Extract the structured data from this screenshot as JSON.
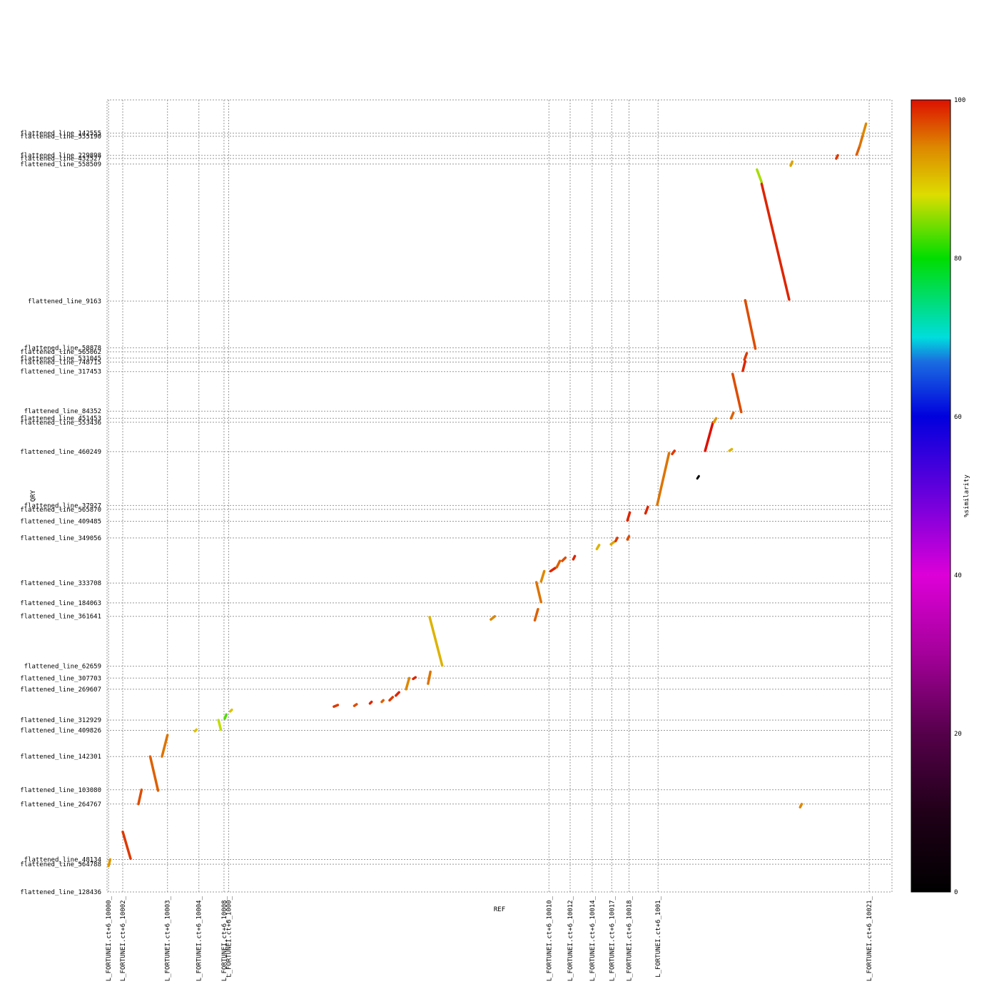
{
  "chart_data": {
    "type": "scatter",
    "xlabel": "REF",
    "ylabel": "QRY",
    "colorbar": {
      "label": "%similarity",
      "ticks": [
        "0",
        "20",
        "40",
        "60",
        "80",
        "100"
      ]
    },
    "x_ticks": [
      {
        "label": "L_FORTUNEI.ct+6_10000_",
        "at": 0.002
      },
      {
        "label": "L_FORTUNEI.ct+6_10002_",
        "at": 0.02
      },
      {
        "label": "L_FORTUNEI.ct+6_10003_",
        "at": 0.077
      },
      {
        "label": "L_FORTUNEI.ct+6_10004_",
        "at": 0.117
      },
      {
        "label": "L_FORTUNEI.ct+6_10008_",
        "at": 0.149
      },
      {
        "label": "L_FORTUNEI.ct+6_1000_",
        "at": 0.155
      },
      {
        "label": "L_FORTUNEI.ct+6_10010_",
        "at": 0.563
      },
      {
        "label": "L_FORTUNEI.ct+6_10012_",
        "at": 0.59
      },
      {
        "label": "L_FORTUNEI.ct+6_10014_",
        "at": 0.618
      },
      {
        "label": "L_FORTUNEI.ct+6_10017_",
        "at": 0.643
      },
      {
        "label": "L_FORTUNEI.ct+6_10018_",
        "at": 0.665
      },
      {
        "label": "L_FORTUNEI.ct+6_1001_",
        "at": 0.702
      },
      {
        "label": "L_FORTUNEI.ct+6_10021_",
        "at": 0.971
      }
    ],
    "y_ticks": [
      {
        "label": "flattened_line_142555",
        "at": 0.958
      },
      {
        "label": "flattened_line_555190",
        "at": 0.954
      },
      {
        "label": "flattened_line_229898",
        "at": 0.93
      },
      {
        "label": "flattened_line_432527",
        "at": 0.926
      },
      {
        "label": "flattened_line_558509",
        "at": 0.919
      },
      {
        "label": "flattened_line_9163",
        "at": 0.746
      },
      {
        "label": "flattened_line_58878",
        "at": 0.687
      },
      {
        "label": "flattened_line_565062",
        "at": 0.682
      },
      {
        "label": "flattened_line_531045",
        "at": 0.674
      },
      {
        "label": "flattened_line_748715",
        "at": 0.669
      },
      {
        "label": "flattened_line_317453",
        "at": 0.657
      },
      {
        "label": "flattened_line_84352",
        "at": 0.607
      },
      {
        "label": "flattened_line_451453",
        "at": 0.598
      },
      {
        "label": "flattened_line_553436",
        "at": 0.593
      },
      {
        "label": "flattened_line_460249",
        "at": 0.556
      },
      {
        "label": "flattened_line_37927",
        "at": 0.488
      },
      {
        "label": "flattened_line_565870",
        "at": 0.483
      },
      {
        "label": "flattened_line_409485",
        "at": 0.468
      },
      {
        "label": "flattened_line_349056",
        "at": 0.447
      },
      {
        "label": "flattened_line_333708",
        "at": 0.39
      },
      {
        "label": "flattened_line_184063",
        "at": 0.365
      },
      {
        "label": "flattened_line_361641",
        "at": 0.348
      },
      {
        "label": "flattened_line_62659",
        "at": 0.285
      },
      {
        "label": "flattened_line_307703",
        "at": 0.27
      },
      {
        "label": "flattened_line_269607",
        "at": 0.256
      },
      {
        "label": "flattened_line_312929",
        "at": 0.217
      },
      {
        "label": "flattened_line_409826",
        "at": 0.204
      },
      {
        "label": "flattened_line_142301",
        "at": 0.171
      },
      {
        "label": "flattened_line_103080",
        "at": 0.129
      },
      {
        "label": "flattened_line_264767",
        "at": 0.111
      },
      {
        "label": "flattened_line_48134",
        "at": 0.041
      },
      {
        "label": "flattened_line_564788",
        "at": 0.035
      },
      {
        "label": "flattened_line_128436",
        "at": 0.0
      }
    ],
    "segments": [
      {
        "x": [
          0.002,
          0.004
        ],
        "y": [
          0.033,
          0.041
        ],
        "sim": 93
      },
      {
        "x": [
          0.02,
          0.03
        ],
        "y": [
          0.076,
          0.042
        ],
        "sim": 98
      },
      {
        "x": [
          0.04,
          0.044
        ],
        "y": [
          0.111,
          0.129
        ],
        "sim": 97
      },
      {
        "x": [
          0.055,
          0.065
        ],
        "y": [
          0.171,
          0.128
        ],
        "sim": 96
      },
      {
        "x": [
          0.07,
          0.077
        ],
        "y": [
          0.171,
          0.198
        ],
        "sim": 95
      },
      {
        "x": [
          0.112,
          0.114
        ],
        "y": [
          0.203,
          0.205
        ],
        "sim": 90
      },
      {
        "x": [
          0.142,
          0.145
        ],
        "y": [
          0.217,
          0.205
        ],
        "sim": 87
      },
      {
        "x": [
          0.15,
          0.152
        ],
        "y": [
          0.219,
          0.224
        ],
        "sim": 83
      },
      {
        "x": [
          0.157,
          0.159
        ],
        "y": [
          0.228,
          0.23
        ],
        "sim": 90
      },
      {
        "x": [
          0.289,
          0.294
        ],
        "y": [
          0.234,
          0.236
        ],
        "sim": 98
      },
      {
        "x": [
          0.315,
          0.318
        ],
        "y": [
          0.235,
          0.237
        ],
        "sim": 97
      },
      {
        "x": [
          0.335,
          0.337
        ],
        "y": [
          0.238,
          0.24
        ],
        "sim": 99
      },
      {
        "x": [
          0.35,
          0.352
        ],
        "y": [
          0.24,
          0.242
        ],
        "sim": 96
      },
      {
        "x": [
          0.36,
          0.364
        ],
        "y": [
          0.242,
          0.246
        ],
        "sim": 98
      },
      {
        "x": [
          0.368,
          0.372
        ],
        "y": [
          0.248,
          0.252
        ],
        "sim": 99
      },
      {
        "x": [
          0.381,
          0.385
        ],
        "y": [
          0.256,
          0.27
        ],
        "sim": 94
      },
      {
        "x": [
          0.39,
          0.393
        ],
        "y": [
          0.269,
          0.271
        ],
        "sim": 99
      },
      {
        "x": [
          0.409,
          0.412
        ],
        "y": [
          0.263,
          0.278
        ],
        "sim": 95
      },
      {
        "x": [
          0.411,
          0.427
        ],
        "y": [
          0.347,
          0.286
        ],
        "sim": 91
      },
      {
        "x": [
          0.489,
          0.494
        ],
        "y": [
          0.344,
          0.348
        ],
        "sim": 94
      },
      {
        "x": [
          0.545,
          0.549
        ],
        "y": [
          0.343,
          0.357
        ],
        "sim": 96
      },
      {
        "x": [
          0.547,
          0.553
        ],
        "y": [
          0.391,
          0.366
        ],
        "sim": 95
      },
      {
        "x": [
          0.553,
          0.557
        ],
        "y": [
          0.392,
          0.405
        ],
        "sim": 94
      },
      {
        "x": [
          0.565,
          0.571
        ],
        "y": [
          0.405,
          0.409
        ],
        "sim": 99
      },
      {
        "x": [
          0.573,
          0.577
        ],
        "y": [
          0.41,
          0.418
        ],
        "sim": 96
      },
      {
        "x": [
          0.58,
          0.584
        ],
        "y": [
          0.418,
          0.422
        ],
        "sim": 97
      },
      {
        "x": [
          0.594,
          0.596
        ],
        "y": [
          0.42,
          0.424
        ],
        "sim": 99
      },
      {
        "x": [
          0.624,
          0.627
        ],
        "y": [
          0.433,
          0.438
        ],
        "sim": 91
      },
      {
        "x": [
          0.642,
          0.646
        ],
        "y": [
          0.439,
          0.442
        ],
        "sim": 92
      },
      {
        "x": [
          0.648,
          0.65
        ],
        "y": [
          0.443,
          0.447
        ],
        "sim": 98
      },
      {
        "x": [
          0.663,
          0.665
        ],
        "y": [
          0.445,
          0.449
        ],
        "sim": 97
      },
      {
        "x": [
          0.663,
          0.666
        ],
        "y": [
          0.469,
          0.479
        ],
        "sim": 99
      },
      {
        "x": [
          0.686,
          0.689
        ],
        "y": [
          0.478,
          0.486
        ],
        "sim": 99
      },
      {
        "x": [
          0.701,
          0.716
        ],
        "y": [
          0.489,
          0.554
        ],
        "sim": 95
      },
      {
        "x": [
          0.72,
          0.723
        ],
        "y": [
          0.553,
          0.557
        ],
        "sim": 98
      },
      {
        "x": [
          0.762,
          0.772
        ],
        "y": [
          0.557,
          0.593
        ],
        "sim": 100
      },
      {
        "x": [
          0.773,
          0.776
        ],
        "y": [
          0.593,
          0.598
        ],
        "sim": 93
      },
      {
        "x": [
          0.793,
          0.796
        ],
        "y": [
          0.557,
          0.559
        ],
        "sim": 91
      },
      {
        "x": [
          0.795,
          0.798
        ],
        "y": [
          0.598,
          0.605
        ],
        "sim": 96
      },
      {
        "x": [
          0.797,
          0.808
        ],
        "y": [
          0.654,
          0.606
        ],
        "sim": 97
      },
      {
        "x": [
          0.81,
          0.813
        ],
        "y": [
          0.658,
          0.67
        ],
        "sim": 99
      },
      {
        "x": [
          0.812,
          0.815
        ],
        "y": [
          0.672,
          0.68
        ],
        "sim": 98
      },
      {
        "x": [
          0.813,
          0.826
        ],
        "y": [
          0.747,
          0.686
        ],
        "sim": 97
      },
      {
        "x": [
          0.828,
          0.834
        ],
        "y": [
          0.912,
          0.896
        ],
        "sim": 86
      },
      {
        "x": [
          0.834,
          0.869
        ],
        "y": [
          0.894,
          0.748
        ],
        "sim": 99
      },
      {
        "x": [
          0.871,
          0.873
        ],
        "y": [
          0.917,
          0.922
        ],
        "sim": 92
      },
      {
        "x": [
          0.929,
          0.931
        ],
        "y": [
          0.926,
          0.93
        ],
        "sim": 98
      },
      {
        "x": [
          0.955,
          0.959
        ],
        "y": [
          0.931,
          0.942
        ],
        "sim": 96
      },
      {
        "x": [
          0.959,
          0.963
        ],
        "y": [
          0.942,
          0.956
        ],
        "sim": 95
      },
      {
        "x": [
          0.963,
          0.967
        ],
        "y": [
          0.956,
          0.97
        ],
        "sim": 94
      },
      {
        "x": [
          0.883,
          0.885
        ],
        "y": [
          0.107,
          0.111
        ],
        "sim": 94
      },
      {
        "x": [
          0.752,
          0.754
        ],
        "y": [
          0.522,
          0.525
        ],
        "sim": 0
      }
    ]
  }
}
